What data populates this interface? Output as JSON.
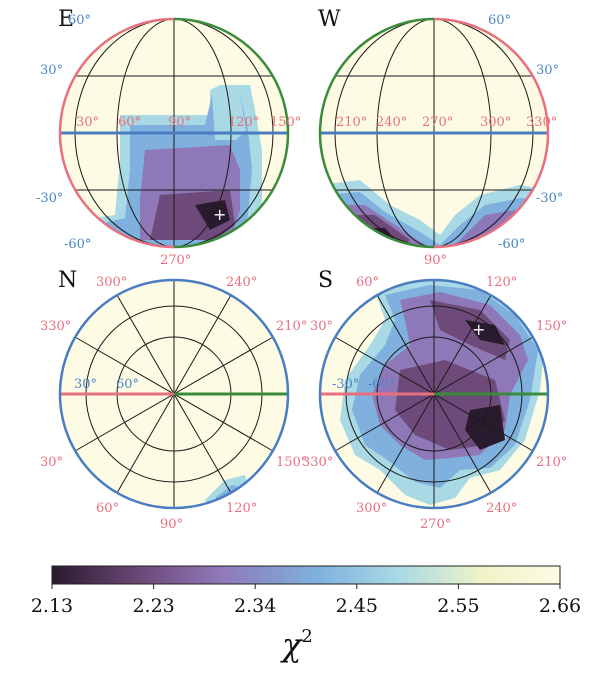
{
  "chart_data": [
    {
      "type": "heatmap",
      "panel": "E",
      "projection": "orthographic",
      "lon_ticks": [
        "30°",
        "60°",
        "90°",
        "120°",
        "150°"
      ],
      "lat_ticks_left": [
        "60°",
        "30°",
        "-30°",
        "-60°"
      ],
      "bottom_tick": "270°",
      "best_fit_marker": true,
      "high_chi2_regions": "upper-left quadrant and right lobe at 2.66; low values in lower center"
    },
    {
      "type": "heatmap",
      "panel": "W",
      "projection": "orthographic",
      "lon_ticks": [
        "210°",
        "240°",
        "270°",
        "300°",
        "330°"
      ],
      "lat_ticks_right": [
        "60°",
        "30°",
        "-30°",
        "-60°"
      ],
      "bottom_tick": "90°",
      "best_fit_marker": false
    },
    {
      "type": "heatmap",
      "panel": "N",
      "projection": "polar",
      "az_ticks": [
        "300°",
        "240°",
        "330°",
        "210°",
        "30°",
        "150°",
        "60°",
        "120°",
        "90°"
      ],
      "inner_ticks": [
        "30°",
        "60°"
      ],
      "best_fit_marker": false
    },
    {
      "type": "heatmap",
      "panel": "S",
      "projection": "polar",
      "az_ticks": [
        "60°",
        "120°",
        "30°",
        "150°",
        "330°",
        "210°",
        "300°",
        "240°",
        "270°"
      ],
      "inner_ticks": [
        "-30°",
        "-60°"
      ],
      "best_fit_marker": true
    }
  ],
  "colorbar": {
    "ticks": [
      "2.13",
      "2.23",
      "2.34",
      "2.45",
      "2.55",
      "2.66"
    ],
    "min": 2.13,
    "max": 2.66,
    "label": "χ²",
    "colormap": [
      "#2a1a2e",
      "#6e4a7a",
      "#8f78b8",
      "#7fb0de",
      "#a8d9e4",
      "#f0f3c8",
      "#fdfbe4"
    ]
  },
  "panels": {
    "E": {
      "label": "E"
    },
    "W": {
      "label": "W"
    },
    "N": {
      "label": "N"
    },
    "S": {
      "label": "S"
    }
  },
  "colors": {
    "sphere_fill": "#fdfbe4",
    "rim_red": "#e8707e",
    "rim_green": "#3a8c3a",
    "rim_blue": "#4a7cc0",
    "grid": "#1a1a1a"
  }
}
